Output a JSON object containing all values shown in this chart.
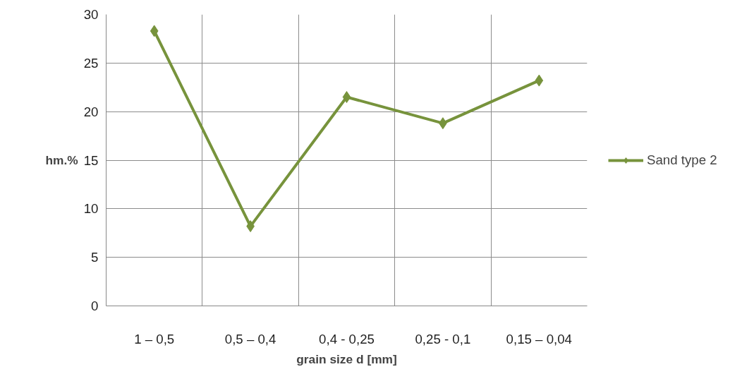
{
  "chart_data": {
    "type": "line",
    "xlabel": "grain size d [mm]",
    "ylabel": "hm.%",
    "categories": [
      "1 – 0,5",
      "0,5 – 0,4",
      "0,4 - 0,25",
      "0,25 - 0,1",
      "0,15 – 0,04"
    ],
    "series": [
      {
        "name": "Sand type 2",
        "color": "#77933c",
        "values": [
          28.3,
          8.2,
          21.5,
          18.8,
          23.2
        ]
      }
    ],
    "ylim": [
      0,
      30
    ],
    "yticks": [
      0,
      5,
      10,
      15,
      20,
      25,
      30
    ],
    "grid": true,
    "legend": "right",
    "marker": "diamond",
    "line_style": "solid"
  }
}
